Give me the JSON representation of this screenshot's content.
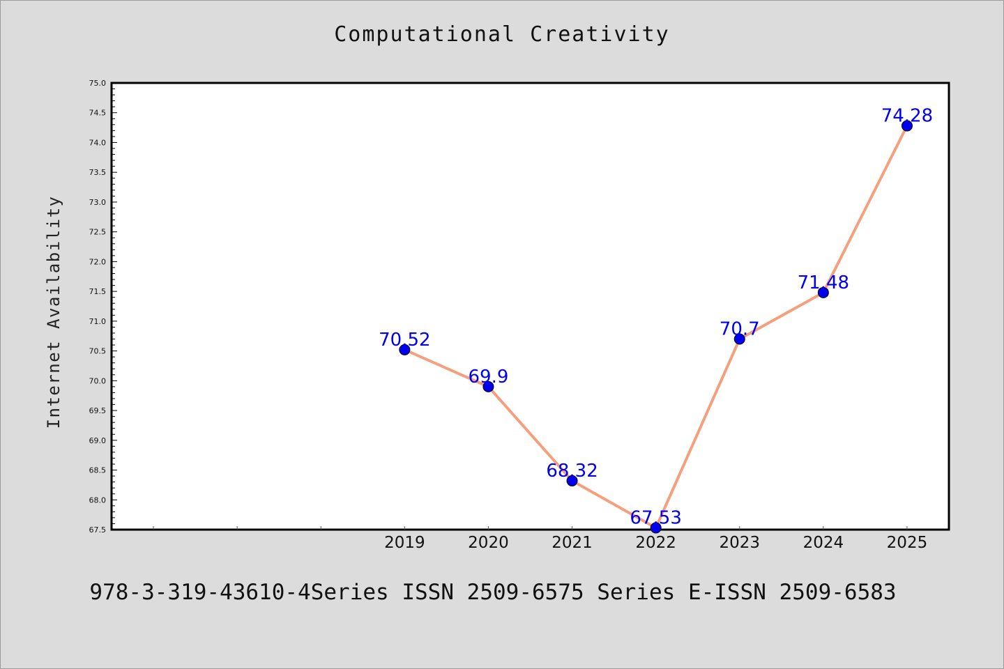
{
  "chart_data": {
    "type": "line",
    "title": "Computational Creativity",
    "xlabel": "",
    "ylabel": "Internet Availability",
    "x_tick_labels": [
      "2019",
      "2020",
      "2021",
      "2022",
      "2023",
      "2024",
      "2025"
    ],
    "x": [
      2019,
      2020,
      2021,
      2022,
      2023,
      2024,
      2025
    ],
    "series": [
      {
        "values": [
          70.52,
          69.9,
          68.32,
          67.53,
          70.7,
          71.48,
          74.28
        ]
      }
    ],
    "data_labels": [
      "70.52",
      "69.9",
      "68.32",
      "67.53",
      "70.7",
      "71.48",
      "74.28"
    ],
    "y_tick_labels": [
      "67.5",
      "68.0",
      "68.5",
      "69.0",
      "69.5",
      "70.0",
      "70.5",
      "71.0",
      "71.5",
      "72.0",
      "72.5",
      "73.0",
      "73.5",
      "74.0",
      "74.5",
      "75.0"
    ],
    "xlim": [
      2015.5,
      2025.5
    ],
    "ylim": [
      67.5,
      75.0
    ],
    "grid": false,
    "line_color": "#f4a07f",
    "marker_color": "#0000ee",
    "label_color": "#0000ee"
  },
  "footer": {
    "text": "978-3-319-43610-4Series ISSN 2509-6575 Series E-ISSN 2509-6583"
  }
}
